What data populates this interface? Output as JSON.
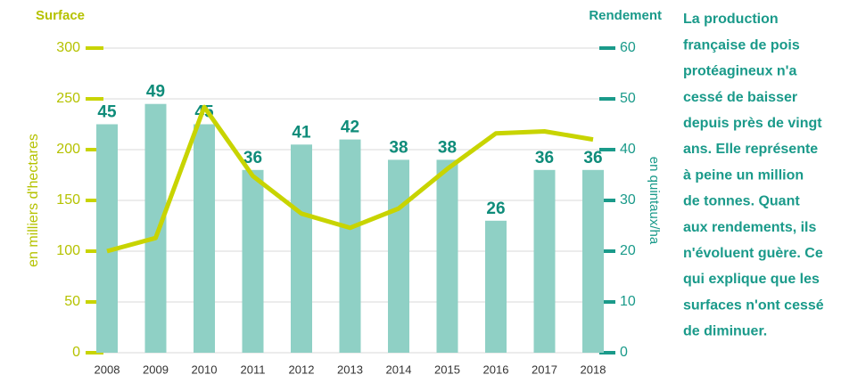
{
  "chart_data": {
    "type": "bar-line",
    "left_header": "Surface",
    "right_header": "Rendement",
    "ylabel": "en milliers d'hectares",
    "y2label": "en quintaux/ha",
    "categories": [
      "2008",
      "2009",
      "2010",
      "2011",
      "2012",
      "2013",
      "2014",
      "2015",
      "2016",
      "2017",
      "2018"
    ],
    "series": [
      {
        "name": "Rendement",
        "type": "bar",
        "axis": "y2",
        "color": "#8fd0c5",
        "label_color": "#0f8c7a",
        "values": [
          45,
          49,
          45,
          36,
          41,
          42,
          38,
          38,
          26,
          36,
          36
        ]
      },
      {
        "name": "Surface",
        "type": "line",
        "axis": "y",
        "color": "#c8d400",
        "values": [
          100,
          113,
          242,
          174,
          137,
          123,
          142,
          181,
          216,
          218,
          210
        ]
      }
    ],
    "ylim": [
      0,
      300
    ],
    "yticks": [
      0,
      50,
      100,
      150,
      200,
      250,
      300
    ],
    "y_color": "#b5c200",
    "y2lim": [
      0,
      60
    ],
    "y2ticks": [
      0,
      10,
      20,
      30,
      40,
      50,
      60
    ],
    "y2_color": "#1a9a8a",
    "grid": true
  },
  "paragraph": {
    "color": "#1a9a8a",
    "lines": [
      "La production",
      "française de pois",
      "protéagineux n'a",
      "cessé de baisser",
      "depuis près de vingt",
      "ans. Elle représente",
      "à peine un million",
      "de tonnes. Quant",
      "aux rendements, ils",
      "n'évoluent guère. Ce",
      "qui explique que les",
      "surfaces n'ont cessé",
      "de diminuer."
    ]
  }
}
